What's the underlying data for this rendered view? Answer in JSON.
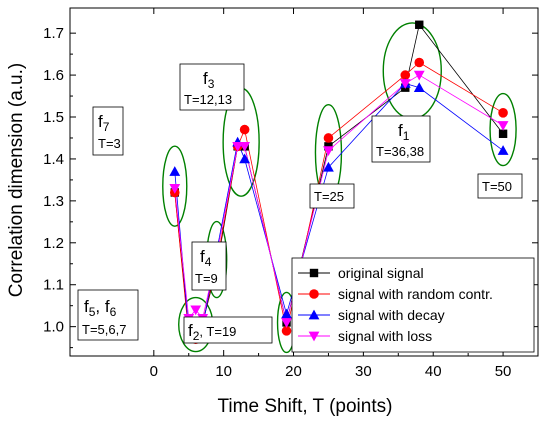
{
  "chart_data": {
    "type": "scatter",
    "xlabel": "Time Shift, T (points)",
    "ylabel": "Correlation dimension (a.u.)",
    "xlim": [
      -12,
      55
    ],
    "ylim": [
      0.93,
      1.76
    ],
    "x_ticks": [
      "0",
      "10",
      "20",
      "30",
      "40",
      "50"
    ],
    "y_ticks": [
      "1.0",
      "1.1",
      "1.2",
      "1.3",
      "1.4",
      "1.5",
      "1.6",
      "1.7"
    ],
    "grid": false,
    "legend_position": "bottom-right",
    "series": [
      {
        "name": "original signal",
        "color": "#000000",
        "marker": "square",
        "x": [
          3,
          5,
          6,
          7,
          9,
          12,
          13,
          19,
          25,
          36,
          38,
          50
        ],
        "y": [
          1.32,
          0.99,
          1.01,
          1.01,
          1.14,
          1.43,
          1.43,
          1.01,
          1.43,
          1.57,
          1.72,
          1.46
        ]
      },
      {
        "name": "signal with random contr.",
        "color": "#ff0000",
        "marker": "circle",
        "x": [
          3,
          5,
          6,
          7,
          9,
          12,
          13,
          19,
          25,
          36,
          38,
          50
        ],
        "y": [
          1.32,
          0.98,
          0.97,
          1.01,
          1.15,
          1.43,
          1.47,
          0.99,
          1.45,
          1.6,
          1.63,
          1.51
        ]
      },
      {
        "name": "signal with decay",
        "color": "#0000ff",
        "marker": "triangle-up",
        "x": [
          3,
          5,
          6,
          7,
          9,
          12,
          13,
          19,
          25,
          36,
          38,
          50
        ],
        "y": [
          1.37,
          0.99,
          1.01,
          1.0,
          1.18,
          1.44,
          1.4,
          1.03,
          1.38,
          1.58,
          1.57,
          1.42
        ]
      },
      {
        "name": "signal with loss",
        "color": "#ff00ff",
        "marker": "triangle-down",
        "x": [
          3,
          5,
          6,
          7,
          9,
          12,
          13,
          19,
          25,
          36,
          38,
          50
        ],
        "y": [
          1.33,
          1.02,
          1.04,
          1.02,
          1.17,
          1.43,
          1.43,
          1.01,
          1.42,
          1.58,
          1.6,
          1.48
        ]
      }
    ],
    "annotations": {
      "f7": {
        "base": "f",
        "sub": "7",
        "detail": "T=3"
      },
      "f3": {
        "base": "f",
        "sub": "3",
        "detail": "T=12,13"
      },
      "f4": {
        "base": "f",
        "sub": "4",
        "detail": "T=9"
      },
      "f56": {
        "base1": "f",
        "sub1": "5",
        "sep": ",  ",
        "base2": "f",
        "sub2": "6",
        "detail": "T=5,6,7"
      },
      "f2": {
        "base": "f",
        "sub": "2",
        "detail": ", T=19"
      },
      "t25": {
        "detail": "T=25"
      },
      "f1": {
        "base": "f",
        "sub": "1",
        "detail": "T=36,38"
      },
      "t50": {
        "detail": "T=50"
      }
    }
  }
}
